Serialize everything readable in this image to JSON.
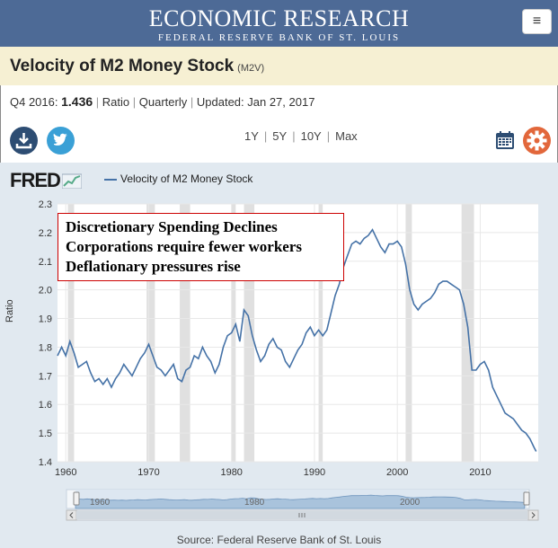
{
  "header": {
    "title": "ECONOMIC RESEARCH",
    "subtitle": "FEDERAL RESERVE BANK OF ST. LOUIS",
    "menu_icon": "hamburger-menu-icon"
  },
  "series": {
    "title": "Velocity of M2 Money Stock",
    "code": "(M2V)",
    "period": "Q4 2016:",
    "value": "1.436",
    "units": "Ratio",
    "frequency": "Quarterly",
    "updated": "Updated: Jan 27, 2017"
  },
  "toolbar": {
    "ranges": [
      "1Y",
      "5Y",
      "10Y",
      "Max"
    ],
    "icons": [
      "download-icon",
      "twitter-icon",
      "calendar-icon",
      "gear-icon"
    ]
  },
  "chart": {
    "brand": "FRED",
    "legend": "Velocity of M2 Money Stock",
    "annotation": [
      "Discretionary Spending Declines",
      "Corporations require fewer workers",
      "Deflationary pressures rise"
    ],
    "source": "Source: Federal Reserve Bank of St. Louis",
    "navigator_labels": [
      "1960",
      "1980",
      "2000"
    ]
  },
  "chart_data": {
    "type": "line",
    "ylabel": "Ratio",
    "xlim": [
      1959,
      2017
    ],
    "ylim": [
      1.4,
      2.3
    ],
    "xticks": [
      1960,
      1970,
      1980,
      1990,
      2000,
      2010
    ],
    "yticks": [
      1.4,
      1.5,
      1.6,
      1.7,
      1.8,
      1.9,
      2.0,
      2.1,
      2.2,
      2.3
    ],
    "line_color": "#4572a7",
    "recessions": [
      [
        1960.25,
        1961.0
      ],
      [
        1969.75,
        1970.75
      ],
      [
        1973.75,
        1975.0
      ],
      [
        1980.0,
        1980.5
      ],
      [
        1981.5,
        1982.75
      ],
      [
        1990.5,
        1991.0
      ],
      [
        2001.0,
        2001.75
      ],
      [
        2007.75,
        2009.25
      ]
    ],
    "x": [
      1959.0,
      1959.5,
      1960.0,
      1960.5,
      1961.0,
      1961.5,
      1962.0,
      1962.5,
      1963.0,
      1963.5,
      1964.0,
      1964.5,
      1965.0,
      1965.5,
      1966.0,
      1966.5,
      1967.0,
      1967.5,
      1968.0,
      1968.5,
      1969.0,
      1969.5,
      1970.0,
      1970.5,
      1971.0,
      1971.5,
      1972.0,
      1972.5,
      1973.0,
      1973.5,
      1974.0,
      1974.5,
      1975.0,
      1975.5,
      1976.0,
      1976.5,
      1977.0,
      1977.5,
      1978.0,
      1978.5,
      1979.0,
      1979.5,
      1980.0,
      1980.5,
      1981.0,
      1981.5,
      1982.0,
      1982.5,
      1983.0,
      1983.5,
      1984.0,
      1984.5,
      1985.0,
      1985.5,
      1986.0,
      1986.5,
      1987.0,
      1987.5,
      1988.0,
      1988.5,
      1989.0,
      1989.5,
      1990.0,
      1990.5,
      1991.0,
      1991.5,
      1992.0,
      1992.5,
      1993.0,
      1993.5,
      1994.0,
      1994.5,
      1995.0,
      1995.5,
      1996.0,
      1996.5,
      1997.0,
      1997.5,
      1998.0,
      1998.5,
      1999.0,
      1999.5,
      2000.0,
      2000.5,
      2001.0,
      2001.5,
      2002.0,
      2002.5,
      2003.0,
      2003.5,
      2004.0,
      2004.5,
      2005.0,
      2005.5,
      2006.0,
      2006.5,
      2007.0,
      2007.5,
      2008.0,
      2008.5,
      2009.0,
      2009.5,
      2010.0,
      2010.5,
      2011.0,
      2011.5,
      2012.0,
      2012.5,
      2013.0,
      2013.5,
      2014.0,
      2014.5,
      2015.0,
      2015.5,
      2016.0,
      2016.5,
      2016.75
    ],
    "y": [
      1.77,
      1.8,
      1.77,
      1.82,
      1.78,
      1.73,
      1.74,
      1.75,
      1.71,
      1.68,
      1.69,
      1.67,
      1.69,
      1.66,
      1.69,
      1.71,
      1.74,
      1.72,
      1.7,
      1.73,
      1.76,
      1.78,
      1.81,
      1.77,
      1.73,
      1.72,
      1.7,
      1.72,
      1.74,
      1.69,
      1.68,
      1.72,
      1.73,
      1.77,
      1.76,
      1.8,
      1.77,
      1.75,
      1.71,
      1.74,
      1.8,
      1.84,
      1.85,
      1.88,
      1.82,
      1.93,
      1.91,
      1.84,
      1.79,
      1.75,
      1.77,
      1.81,
      1.83,
      1.8,
      1.79,
      1.75,
      1.73,
      1.76,
      1.79,
      1.81,
      1.85,
      1.87,
      1.84,
      1.86,
      1.84,
      1.86,
      1.92,
      1.98,
      2.02,
      2.08,
      2.12,
      2.16,
      2.17,
      2.16,
      2.18,
      2.19,
      2.21,
      2.18,
      2.15,
      2.13,
      2.16,
      2.16,
      2.17,
      2.15,
      2.09,
      2.0,
      1.95,
      1.93,
      1.95,
      1.96,
      1.97,
      1.99,
      2.02,
      2.03,
      2.03,
      2.02,
      2.01,
      2.0,
      1.95,
      1.87,
      1.72,
      1.72,
      1.74,
      1.75,
      1.72,
      1.66,
      1.63,
      1.6,
      1.57,
      1.56,
      1.55,
      1.53,
      1.51,
      1.5,
      1.48,
      1.45,
      1.436
    ]
  }
}
